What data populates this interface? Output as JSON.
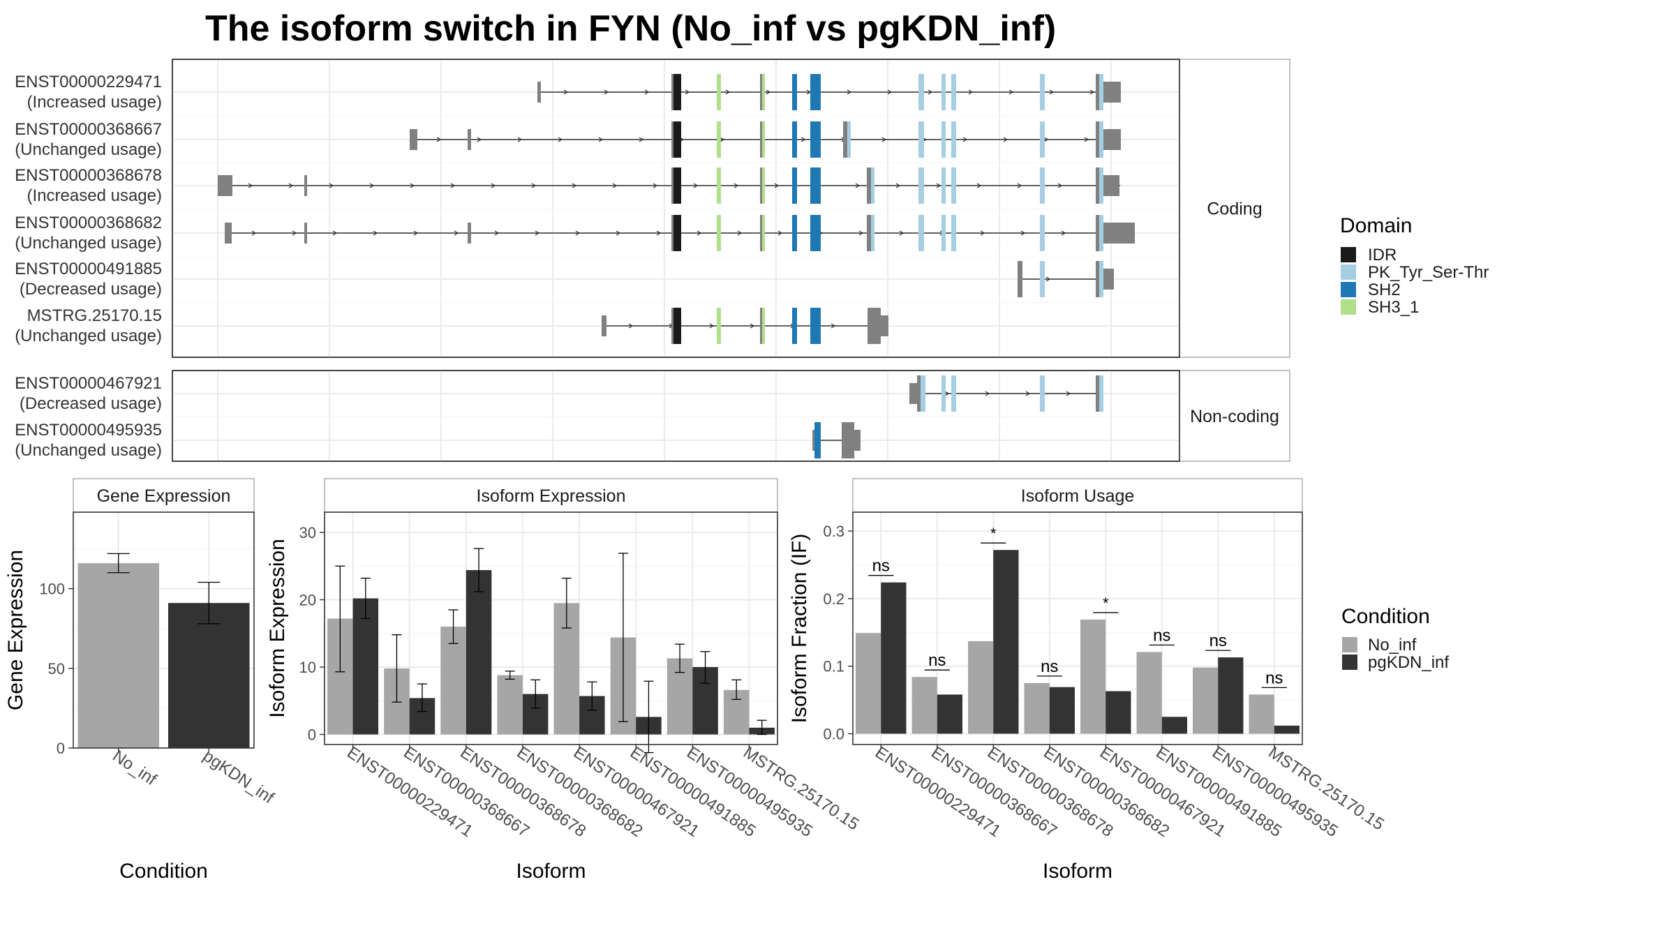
{
  "title": "The isoform switch in FYN (No_inf vs pgKDN_inf)",
  "colors": {
    "IDR": "#1a1a1a",
    "PK_Tyr_Ser-Thr": "#a6cee3",
    "SH2": "#1f78b4",
    "SH3_1": "#b2df8a",
    "noncoding_exon": "#808080",
    "No_inf": "#a6a6a6",
    "pgKDN_inf": "#333333"
  },
  "panels": {
    "coding": "Coding",
    "noncoding": "Non-coding"
  },
  "legends": {
    "domain_title": "Domain",
    "domains": [
      "IDR",
      "PK_Tyr_Ser-Thr",
      "SH2",
      "SH3_1"
    ],
    "condition_title": "Condition",
    "conditions": [
      "No_inf",
      "pgKDN_inf"
    ]
  },
  "transcripts": [
    {
      "id": "ENST00000229471",
      "usage": "(Increased usage)",
      "panel": "coding"
    },
    {
      "id": "ENST00000368667",
      "usage": "(Unchanged usage)",
      "panel": "coding"
    },
    {
      "id": "ENST00000368678",
      "usage": "(Increased usage)",
      "panel": "coding"
    },
    {
      "id": "ENST00000368682",
      "usage": "(Unchanged usage)",
      "panel": "coding"
    },
    {
      "id": "ENST00000491885",
      "usage": "(Decreased usage)",
      "panel": "coding"
    },
    {
      "id": "MSTRG.25170.15",
      "usage": "(Unchanged usage)",
      "panel": "coding"
    },
    {
      "id": "ENST00000467921",
      "usage": "(Decreased usage)",
      "panel": "noncoding"
    },
    {
      "id": "ENST00000495935",
      "usage": "(Unchanged usage)",
      "panel": "noncoding"
    }
  ],
  "chart_data": [
    {
      "type": "bar",
      "title": "Gene Expression",
      "xlabel": "Condition",
      "ylabel": "Gene Expression",
      "categories": [
        "No_inf",
        "pgKDN_inf"
      ],
      "values": [
        116,
        91
      ],
      "errors": [
        [
          110,
          122
        ],
        [
          78,
          104
        ]
      ],
      "ylim": [
        0,
        148
      ],
      "yticks": [
        0,
        50,
        100
      ]
    },
    {
      "type": "bar",
      "title": "Isoform Expression",
      "xlabel": "Isoform",
      "ylabel": "Isoform Expression",
      "categories": [
        "ENST00000229471",
        "ENST00000368667",
        "ENST00000368678",
        "ENST00000368682",
        "ENST00000467921",
        "ENST00000491885",
        "ENST00000495935",
        "MSTRG.25170.15"
      ],
      "series": [
        {
          "name": "No_inf",
          "values": [
            17.2,
            9.8,
            16.0,
            8.8,
            19.5,
            14.4,
            11.3,
            6.6
          ],
          "errors": [
            [
              9.3,
              25.0
            ],
            [
              4.8,
              14.8
            ],
            [
              13.5,
              18.5
            ],
            [
              8.2,
              9.4
            ],
            [
              15.8,
              23.2
            ],
            [
              1.9,
              26.9
            ],
            [
              9.2,
              13.4
            ],
            [
              5.2,
              8.1
            ]
          ]
        },
        {
          "name": "pgKDN_inf",
          "values": [
            20.2,
            5.4,
            24.4,
            6.0,
            5.7,
            2.6,
            10.0,
            1.0
          ],
          "errors": [
            [
              17.2,
              23.2
            ],
            [
              3.4,
              7.5
            ],
            [
              21.2,
              27.6
            ],
            [
              3.9,
              8.1
            ],
            [
              3.6,
              7.8
            ],
            [
              -2.7,
              7.9
            ],
            [
              7.6,
              12.3
            ],
            [
              0.0,
              2.1
            ]
          ]
        }
      ],
      "ylim": [
        -1.5,
        33
      ],
      "yticks": [
        0,
        10,
        20,
        30
      ]
    },
    {
      "type": "bar",
      "title": "Isoform Usage",
      "xlabel": "Isoform",
      "ylabel": "Isoform Fraction (IF)",
      "categories": [
        "ENST00000229471",
        "ENST00000368667",
        "ENST00000368678",
        "ENST00000368682",
        "ENST00000467921",
        "ENST00000491885",
        "ENST00000495935",
        "MSTRG.25170.15"
      ],
      "series": [
        {
          "name": "No_inf",
          "values": [
            0.149,
            0.084,
            0.137,
            0.075,
            0.169,
            0.121,
            0.098,
            0.058
          ]
        },
        {
          "name": "pgKDN_inf",
          "values": [
            0.224,
            0.058,
            0.272,
            0.069,
            0.063,
            0.025,
            0.113,
            0.012
          ]
        }
      ],
      "significance": [
        "ns",
        "ns",
        "*",
        "ns",
        "*",
        "ns",
        "ns",
        "ns"
      ],
      "ylim": [
        -0.016,
        0.328
      ],
      "yticks": [
        0.0,
        0.1,
        0.2,
        0.3
      ],
      "ytick_labels": [
        "0.0",
        "0.1",
        "0.2",
        "0.3"
      ]
    }
  ]
}
